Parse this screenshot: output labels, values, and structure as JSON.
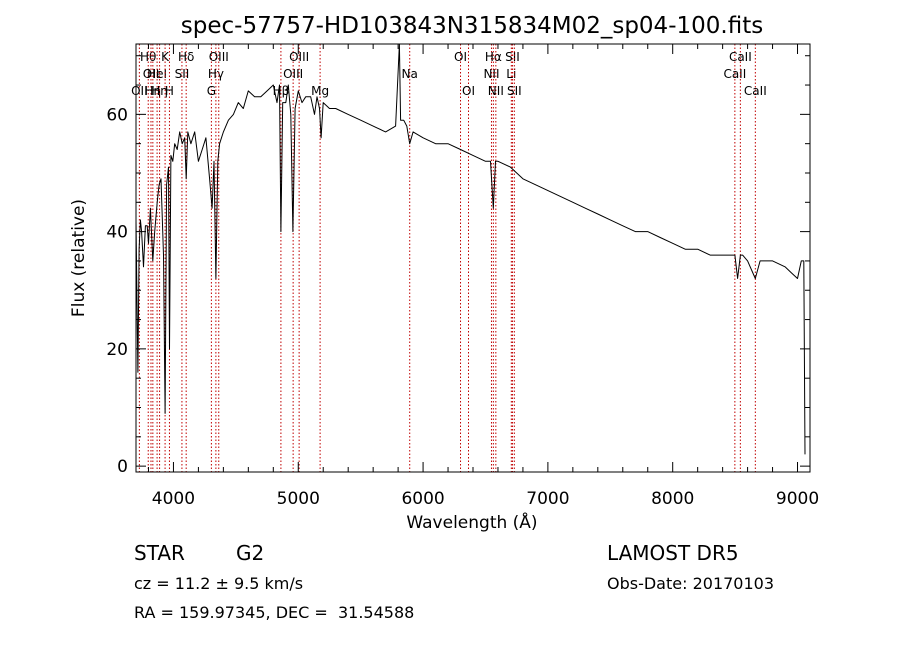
{
  "chart_data": {
    "type": "line",
    "title": "spec-57757-HD103843N315834M02_sp04-100.fits",
    "xlabel": "Wavelength (Å)",
    "ylabel": "Flux (relative)",
    "xlim": [
      3700,
      9100
    ],
    "ylim": [
      -1,
      72
    ],
    "xticks": [
      4000,
      5000,
      6000,
      7000,
      8000,
      9000
    ],
    "yticks": [
      0,
      20,
      40,
      60
    ],
    "xtick_labels": [
      "4000",
      "5000",
      "6000",
      "7000",
      "8000",
      "9000"
    ],
    "ytick_labels": [
      "0",
      "20",
      "40",
      "60"
    ],
    "grid": false,
    "legend": "none",
    "line_color": "#000000",
    "marker_color": "#c00000",
    "series": [
      {
        "x": [
          3700,
          3715,
          3725,
          3735,
          3745,
          3760,
          3775,
          3790,
          3800,
          3815,
          3835,
          3850,
          3870,
          3885,
          3900,
          3920,
          3933,
          3945,
          3960,
          3968,
          3980,
          3995,
          4010,
          4030,
          4050,
          4070,
          4090,
          4102,
          4115,
          4140,
          4170,
          4200,
          4230,
          4260,
          4290,
          4310,
          4325,
          4340,
          4355,
          4370,
          4400,
          4440,
          4480,
          4520,
          4560,
          4600,
          4650,
          4700,
          4750,
          4800,
          4830,
          4850,
          4861,
          4875,
          4900,
          4920,
          4940,
          4957,
          4975,
          5000,
          5030,
          5060,
          5100,
          5130,
          5150,
          5170,
          5183,
          5200,
          5250,
          5300,
          5400,
          5500,
          5600,
          5700,
          5780,
          5810,
          5820,
          5830,
          5845,
          5870,
          5893,
          5920,
          6000,
          6100,
          6200,
          6300,
          6400,
          6500,
          6540,
          6563,
          6580,
          6600,
          6700,
          6800,
          6900,
          7000,
          7100,
          7200,
          7300,
          7400,
          7500,
          7600,
          7700,
          7800,
          7900,
          8000,
          8100,
          8200,
          8300,
          8400,
          8450,
          8498,
          8520,
          8542,
          8560,
          8600,
          8662,
          8700,
          8800,
          8900,
          8950,
          9000,
          9030,
          9050,
          9060
        ],
        "y": [
          42,
          16,
          37,
          42,
          40,
          34,
          41,
          41,
          38,
          44,
          35,
          40,
          45,
          48,
          49,
          36,
          9,
          48,
          51,
          20,
          53,
          52,
          55,
          54,
          57,
          55,
          56,
          49,
          57,
          55,
          57,
          52,
          54,
          56,
          49,
          44,
          52,
          32,
          52,
          55,
          57,
          59,
          60,
          62,
          61,
          64,
          63,
          63,
          64,
          65,
          62,
          65,
          40,
          62,
          62,
          65,
          60,
          40,
          61,
          64,
          62,
          63,
          63,
          60,
          63,
          61,
          56,
          62,
          61,
          61,
          60,
          59,
          58,
          57,
          58,
          72,
          59,
          59,
          59,
          58,
          55,
          57,
          56,
          55,
          55,
          54,
          53,
          52,
          52,
          44,
          52,
          52,
          51,
          49,
          48,
          47,
          46,
          45,
          44,
          43,
          42,
          41,
          40,
          40,
          39,
          38,
          37,
          37,
          36,
          36,
          36,
          36,
          32,
          36,
          36,
          35,
          32,
          35,
          35,
          34,
          33,
          32,
          35,
          35,
          2
        ]
      }
    ],
    "line_markers": [
      {
        "x": 3727,
        "label": "OII",
        "row": 2
      },
      {
        "x": 3798,
        "label": "Hθ",
        "row": 0
      },
      {
        "x": 3820,
        "label": "OII",
        "row": 1
      },
      {
        "x": 3835,
        "label": "Hη",
        "row": 2
      },
      {
        "x": 3869,
        "label": "HeI",
        "row": 1
      },
      {
        "x": 3889,
        "label": "Hη",
        "row": 2
      },
      {
        "x": 3933,
        "label": "K",
        "row": 0
      },
      {
        "x": 3968,
        "label": "H",
        "row": 2
      },
      {
        "x": 4068,
        "label": "SII",
        "row": 1
      },
      {
        "x": 4102,
        "label": "Hδ",
        "row": 0
      },
      {
        "x": 4304,
        "label": "G",
        "row": 2
      },
      {
        "x": 4340,
        "label": "Hγ",
        "row": 1
      },
      {
        "x": 4363,
        "label": "OIII",
        "row": 0
      },
      {
        "x": 4861,
        "label": "Hβ",
        "row": 2
      },
      {
        "x": 4959,
        "label": "OIII",
        "row": 1
      },
      {
        "x": 5007,
        "label": "OIII",
        "row": 0
      },
      {
        "x": 5175,
        "label": "Mg",
        "row": 2
      },
      {
        "x": 5893,
        "label": "Na",
        "row": 1
      },
      {
        "x": 6300,
        "label": "OI",
        "row": 0
      },
      {
        "x": 6364,
        "label": "OI",
        "row": 2
      },
      {
        "x": 6548,
        "label": "NII",
        "row": 1
      },
      {
        "x": 6563,
        "label": "Hα",
        "row": 0
      },
      {
        "x": 6583,
        "label": "NII",
        "row": 2
      },
      {
        "x": 6707,
        "label": "Li",
        "row": 1
      },
      {
        "x": 6716,
        "label": "SII",
        "row": 0
      },
      {
        "x": 6731,
        "label": "SII",
        "row": 2
      },
      {
        "x": 8498,
        "label": "CaII",
        "row": 1
      },
      {
        "x": 8542,
        "label": "CaII",
        "row": 0
      },
      {
        "x": 8662,
        "label": "CaII",
        "row": 2
      }
    ]
  },
  "info": {
    "class": "STAR",
    "subclass": "G2",
    "survey": "LAMOST DR5",
    "cz": "cz = 11.2 ± 9.5 km/s",
    "obs_date": "Obs-Date: 20170103",
    "coords": "RA = 159.97345, DEC =  31.54588"
  }
}
